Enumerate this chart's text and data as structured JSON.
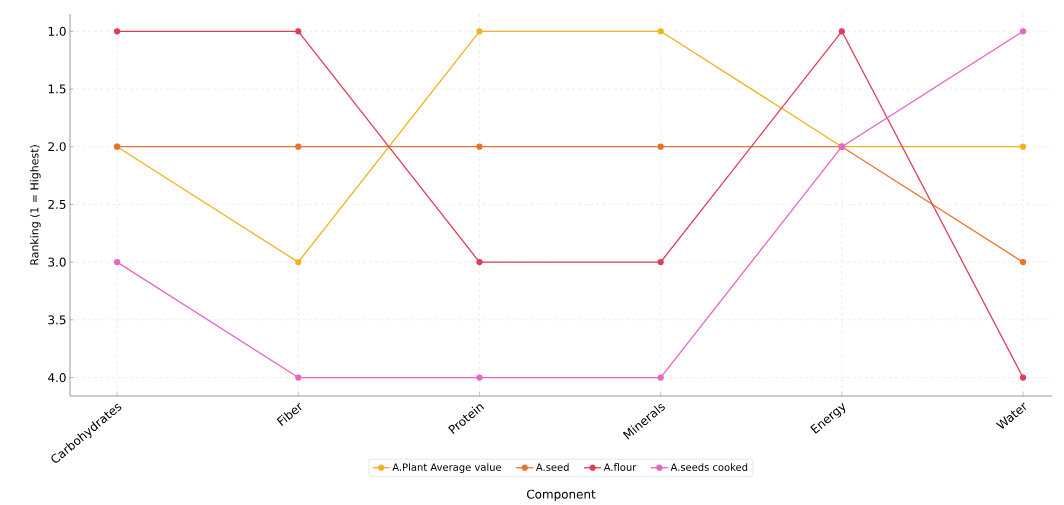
{
  "chart_data": {
    "type": "line",
    "xlabel": "Component",
    "ylabel": "Ranking (1 = Highest)",
    "categories": [
      "Carbohydrates",
      "Fiber",
      "Protein",
      "Minerals",
      "Energy",
      "Water"
    ],
    "series": [
      {
        "name": "A.Plant Average value",
        "color": "#f0b21e",
        "values": [
          2,
          3,
          1,
          1,
          2,
          2
        ]
      },
      {
        "name": "A.seed",
        "color": "#e8732c",
        "values": [
          2,
          2,
          2,
          2,
          2,
          3
        ]
      },
      {
        "name": "A.flour",
        "color": "#e03c5a",
        "values": [
          1,
          1,
          3,
          3,
          1,
          4
        ]
      },
      {
        "name": "A.seeds cooked",
        "color": "#e864c4",
        "values": [
          3,
          4,
          4,
          4,
          2,
          1
        ]
      }
    ],
    "ylim": [
      4.16,
      0.85
    ],
    "yticks": [
      {
        "value": 1,
        "label": "1.0"
      },
      {
        "value": 1.5,
        "label": "1.5"
      },
      {
        "value": 2,
        "label": "2.0"
      },
      {
        "value": 2.5,
        "label": "2.5"
      },
      {
        "value": 3,
        "label": "3.0"
      },
      {
        "value": 3.5,
        "label": "3.5"
      },
      {
        "value": 4,
        "label": "4.0"
      }
    ],
    "grid": true,
    "legend": "bottom",
    "marker": "circle",
    "line_style": "solid"
  }
}
